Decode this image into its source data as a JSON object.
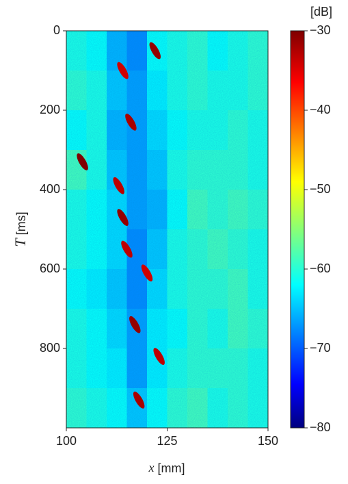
{
  "chart_data": {
    "type": "heatmap",
    "xlabel_symbol": "x",
    "xlabel_unit": "[mm]",
    "ylabel_symbol": "T",
    "ylabel_unit": "[ms]",
    "xlim": [
      100,
      150
    ],
    "xticks": [
      100,
      125,
      150
    ],
    "ylim": [
      1000,
      0
    ],
    "yticks": [
      0,
      200,
      400,
      600,
      800
    ],
    "x": [
      102.5,
      107.5,
      112.5,
      117.5,
      122.5,
      127.5,
      132.5,
      137.5,
      142.5,
      147.5
    ],
    "y": [
      50,
      150,
      250,
      350,
      450,
      550,
      650,
      750,
      850,
      950
    ],
    "z": [
      [
        -60,
        -61,
        -65,
        -67,
        -61,
        -60,
        -59,
        -61,
        -60,
        -59
      ],
      [
        -59,
        -60,
        -64,
        -66,
        -62,
        -60,
        -59,
        -60,
        -60,
        -59
      ],
      [
        -61,
        -60,
        -65,
        -66,
        -63,
        -61,
        -60,
        -60,
        -59,
        -60
      ],
      [
        -58,
        -60,
        -64,
        -66,
        -64,
        -60,
        -59,
        -59,
        -59,
        -60
      ],
      [
        -60,
        -61,
        -63,
        -66,
        -65,
        -61,
        -58,
        -59,
        -58,
        -59
      ],
      [
        -60,
        -61,
        -63,
        -67,
        -64,
        -60,
        -59,
        -58,
        -59,
        -60
      ],
      [
        -61,
        -62,
        -64,
        -67,
        -63,
        -60,
        -59,
        -59,
        -58,
        -60
      ],
      [
        -60,
        -61,
        -63,
        -66,
        -62,
        -61,
        -59,
        -60,
        -58,
        -59
      ],
      [
        -60,
        -61,
        -62,
        -66,
        -62,
        -60,
        -59,
        -59,
        -59,
        -60
      ],
      [
        -59,
        -60,
        -61,
        -64,
        -61,
        -59,
        -58,
        -60,
        -59,
        -60
      ]
    ],
    "peaks": {
      "x": [
        122,
        114,
        116,
        104,
        113,
        114,
        115,
        120,
        117,
        123,
        118
      ],
      "y": [
        50,
        100,
        230,
        330,
        390,
        470,
        550,
        610,
        740,
        820,
        930
      ],
      "values": [
        -31,
        -34,
        -32,
        -30,
        -33,
        -31,
        -33,
        -34,
        -31,
        -33,
        -32
      ]
    },
    "colorbar_label": "[dB]",
    "clim": [
      -80,
      -30
    ],
    "colorbar_ticks": [
      {
        "value": -30,
        "label": "−30"
      },
      {
        "value": -40,
        "label": "−40"
      },
      {
        "value": -50,
        "label": "−50"
      },
      {
        "value": -60,
        "label": "−60"
      },
      {
        "value": -70,
        "label": "−70"
      },
      {
        "value": -80,
        "label": "−80"
      }
    ],
    "colormap": "jet"
  }
}
